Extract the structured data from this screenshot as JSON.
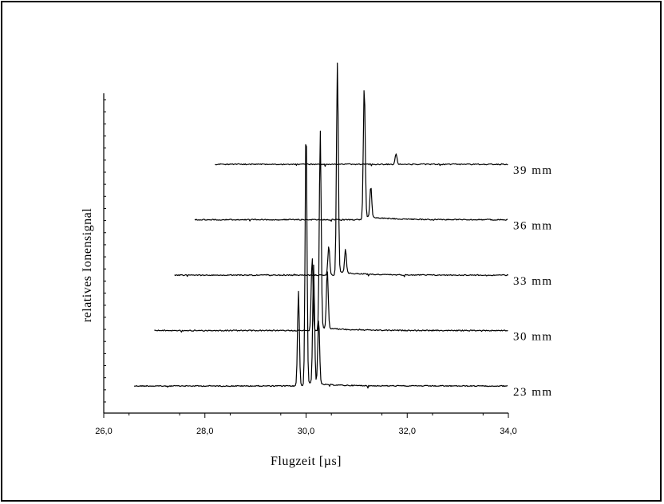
{
  "chart_data": {
    "type": "line",
    "xlabel": "Flugzeit [µs]",
    "ylabel": "relatives Ionensignal",
    "xlim": [
      26.0,
      34.0
    ],
    "x_ticks": [
      "26,0",
      "28,0",
      "30,0",
      "32,0",
      "34,0"
    ],
    "grid": false,
    "series": [
      {
        "name": "23 mm",
        "x_start": 26.6,
        "x_end": 34.0,
        "baseline_level": 0.0,
        "peaks": [
          {
            "x": 29.85,
            "height": 0.36
          },
          {
            "x": 30.0,
            "height": 1.0
          },
          {
            "x": 30.15,
            "height": 0.45
          },
          {
            "x": 30.25,
            "height": 0.25
          }
        ]
      },
      {
        "name": "30 mm",
        "x_start": 27.0,
        "x_end": 34.0,
        "baseline_level": 1.0,
        "peaks": [
          {
            "x": 30.12,
            "height": 0.28
          },
          {
            "x": 30.28,
            "height": 0.75
          },
          {
            "x": 30.42,
            "height": 0.22
          }
        ]
      },
      {
        "name": "33 mm",
        "x_start": 27.4,
        "x_end": 34.0,
        "baseline_level": 2.0,
        "peaks": [
          {
            "x": 30.45,
            "height": 0.11
          },
          {
            "x": 30.62,
            "height": 0.81
          },
          {
            "x": 30.78,
            "height": 0.09
          }
        ]
      },
      {
        "name": "36 mm",
        "x_start": 27.8,
        "x_end": 34.0,
        "baseline_level": 3.0,
        "peaks": [
          {
            "x": 31.15,
            "height": 0.51
          },
          {
            "x": 31.28,
            "height": 0.12
          }
        ]
      },
      {
        "name": "39 mm",
        "x_start": 28.2,
        "x_end": 34.0,
        "baseline_level": 4.0,
        "peaks": [
          {
            "x": 31.78,
            "height": 0.04
          }
        ]
      }
    ]
  }
}
